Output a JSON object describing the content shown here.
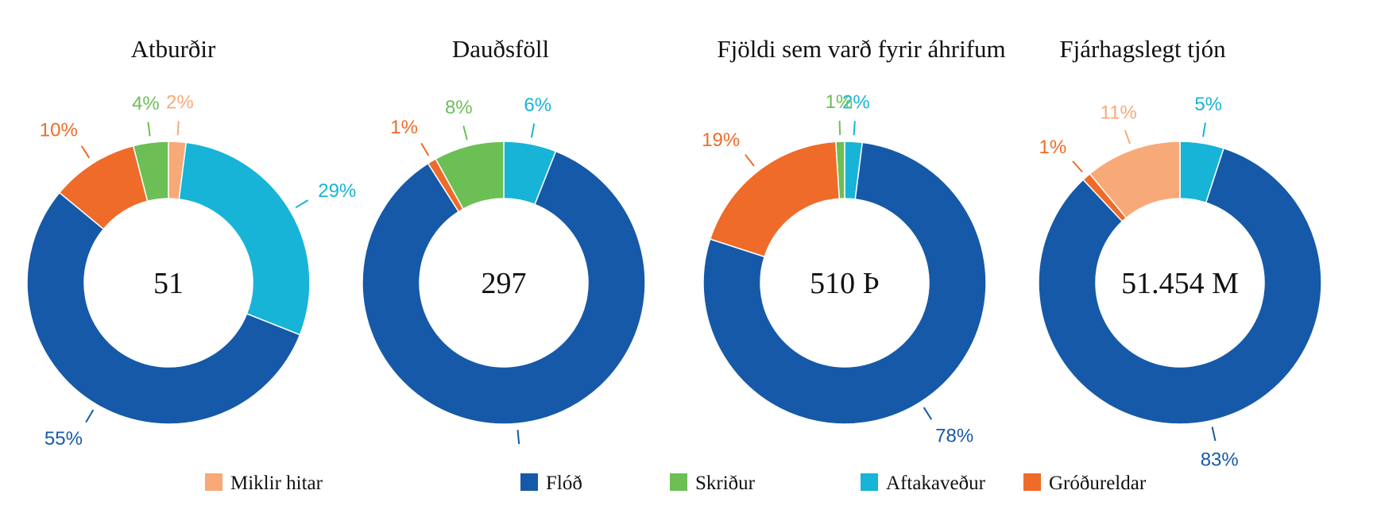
{
  "chart_data": [
    {
      "type": "pie",
      "title": "Atburðir",
      "center_label": "51",
      "series": [
        {
          "category": "Miklir hitar",
          "value": 2,
          "label": "2%"
        },
        {
          "category": "Aftakaveður",
          "value": 29,
          "label": "29%"
        },
        {
          "category": "Flóð",
          "value": 55,
          "label": "55%"
        },
        {
          "category": "Gróðureldar",
          "value": 10,
          "label": "10%"
        },
        {
          "category": "Skriður",
          "value": 4,
          "label": "4%"
        }
      ]
    },
    {
      "type": "pie",
      "title": "Dauðsföll",
      "center_label": "297",
      "series": [
        {
          "category": "Aftakaveður",
          "value": 6,
          "label": "6%"
        },
        {
          "category": "Flóð",
          "value": 85,
          "label": ""
        },
        {
          "category": "Gróðureldar",
          "value": 1,
          "label": "1%"
        },
        {
          "category": "Skriður",
          "value": 8,
          "label": "8%"
        }
      ]
    },
    {
      "type": "pie",
      "title": "Fjöldi sem varð fyrir áhrifum",
      "center_label": "510 Þ",
      "series": [
        {
          "category": "Aftakaveður",
          "value": 2,
          "label": "2%"
        },
        {
          "category": "Flóð",
          "value": 78,
          "label": "78%"
        },
        {
          "category": "Gróðureldar",
          "value": 19,
          "label": "19%"
        },
        {
          "category": "Skriður",
          "value": 1,
          "label": "1%"
        }
      ]
    },
    {
      "type": "pie",
      "title": "Fjárhagslegt tjón",
      "center_label": "51.454 M",
      "series": [
        {
          "category": "Aftakaveður",
          "value": 5,
          "label": "5%"
        },
        {
          "category": "Flóð",
          "value": 83,
          "label": "83%"
        },
        {
          "category": "Gróðureldar",
          "value": 1,
          "label": "1%"
        },
        {
          "category": "Miklir hitar",
          "value": 11,
          "label": "11%"
        }
      ]
    }
  ],
  "legend": [
    {
      "label": "Miklir hitar",
      "color": "#f8a978"
    },
    {
      "label": "Flóð",
      "color": "#1659a8"
    },
    {
      "label": "Skriður",
      "color": "#6cbf55"
    },
    {
      "label": "Aftakaveður",
      "color": "#17b4d8"
    },
    {
      "label": "Gróðureldar",
      "color": "#ef6b29"
    }
  ],
  "colors": {
    "Miklir hitar": "#f8a978",
    "Flóð": "#1659a8",
    "Skriður": "#6cbf55",
    "Aftakaveður": "#17b4d8",
    "Gróðureldar": "#ef6b29"
  }
}
